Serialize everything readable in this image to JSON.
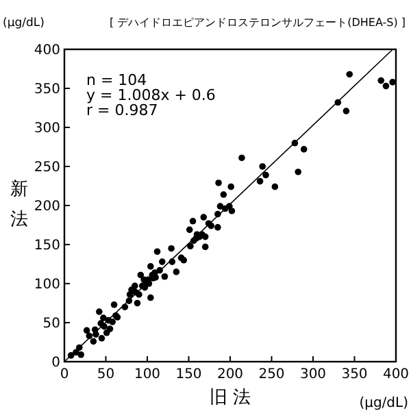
{
  "chart_data": {
    "type": "scatter",
    "title": "[ デハイドロエピアンドロステロンサルフェート(DHEA-S) ]",
    "xlabel": "旧 法",
    "ylabel": "新法",
    "annotations": [
      "(μg/dL)",
      "(μg/dL)",
      "n = 104",
      "y = 1.008x + 0.6",
      "r = 0.987"
    ],
    "xlim": [
      0,
      400
    ],
    "ylim": [
      0,
      400
    ],
    "xticks": [
      0,
      50,
      100,
      150,
      200,
      250,
      300,
      350,
      400
    ],
    "yticks": [
      0,
      50,
      100,
      150,
      200,
      250,
      300,
      350,
      400
    ],
    "grid": false,
    "marker": "circle",
    "series": [
      {
        "color": "#000000",
        "x": [
          8,
          14,
          18,
          20,
          27,
          30,
          35,
          37,
          38,
          42,
          44,
          45,
          47,
          48,
          51,
          53,
          55,
          58,
          60,
          62,
          64,
          73,
          78,
          79,
          81,
          85,
          86,
          88,
          90,
          92,
          94,
          96,
          97,
          99,
          101,
          102,
          104,
          104,
          106,
          107,
          109,
          110,
          112,
          115,
          118,
          121,
          129,
          130,
          135,
          141,
          144,
          151,
          152,
          155,
          156,
          159,
          160,
          163,
          166,
          168,
          170,
          170,
          174,
          177,
          185,
          185,
          186,
          188,
          192,
          194,
          199,
          201,
          202,
          214,
          236,
          239,
          243,
          254,
          278,
          282,
          289,
          330,
          340,
          344,
          382,
          388,
          396
        ],
        "values": [
          8,
          12,
          18,
          9,
          40,
          33,
          26,
          41,
          35,
          64,
          49,
          30,
          56,
          45,
          37,
          53,
          42,
          51,
          73,
          59,
          57,
          70,
          78,
          86,
          92,
          97,
          89,
          75,
          86,
          111,
          97,
          105,
          95,
          100,
          105,
          100,
          82,
          122,
          111,
          107,
          114,
          108,
          141,
          117,
          128,
          109,
          145,
          128,
          115,
          133,
          130,
          169,
          148,
          180,
          155,
          158,
          163,
          160,
          163,
          185,
          160,
          147,
          177,
          174,
          189,
          172,
          229,
          199,
          214,
          196,
          199,
          224,
          193,
          261,
          231,
          250,
          239,
          224,
          280,
          243,
          272,
          332,
          321,
          368,
          360,
          353,
          358
        ]
      },
      {
        "type": "line",
        "color": "#000000",
        "marker": "none",
        "x": [
          0,
          396.2
        ],
        "values": [
          0,
          400
        ]
      }
    ]
  }
}
